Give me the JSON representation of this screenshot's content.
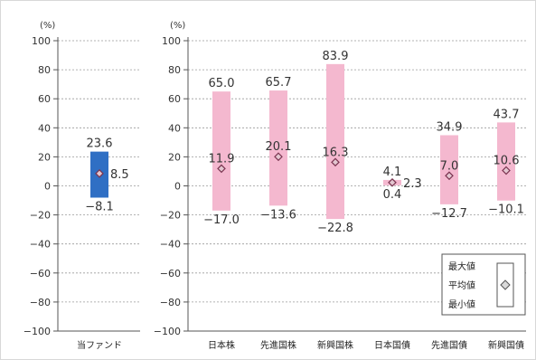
{
  "chart_data": [
    {
      "type": "bar",
      "chart_kind": "range-bar",
      "unit": "(%)",
      "ylim": [
        -100,
        100
      ],
      "yticks": [
        100,
        80,
        60,
        40,
        20,
        0,
        -20,
        -40,
        -60,
        -80,
        -100
      ],
      "ytick_labels": [
        "100",
        "80",
        "60",
        "40",
        "20",
        "0",
        "−20",
        "−40",
        "−60",
        "−80",
        "−100"
      ],
      "grid": true,
      "color": "#2f6fc4",
      "series": [
        {
          "category": "当ファンド",
          "max": 23.6,
          "avg": 8.5,
          "min": -8.1,
          "max_label": "23.6",
          "avg_label": "8.5",
          "min_label": "−8.1"
        }
      ]
    },
    {
      "type": "bar",
      "chart_kind": "range-bar",
      "unit": "(%)",
      "ylim": [
        -100,
        100
      ],
      "yticks": [
        100,
        80,
        60,
        40,
        20,
        0,
        -20,
        -40,
        -60,
        -80,
        -100
      ],
      "ytick_labels": [
        "100",
        "80",
        "60",
        "40",
        "20",
        "0",
        "−20",
        "−40",
        "−60",
        "−80",
        "−100"
      ],
      "grid": true,
      "color": "#f4b8cf",
      "legend": {
        "placement": "bottom-right",
        "max": "最大値",
        "avg": "平均値",
        "min": "最小値"
      },
      "series": [
        {
          "category": "日本株",
          "max": 65.0,
          "avg": 11.9,
          "min": -17.0,
          "max_label": "65.0",
          "avg_label": "11.9",
          "min_label": "−17.0"
        },
        {
          "category": "先進国株",
          "max": 65.7,
          "avg": 20.1,
          "min": -13.6,
          "max_label": "65.7",
          "avg_label": "20.1",
          "min_label": "−13.6"
        },
        {
          "category": "新興国株",
          "max": 83.9,
          "avg": 16.3,
          "min": -22.8,
          "max_label": "83.9",
          "avg_label": "16.3",
          "min_label": "−22.8"
        },
        {
          "category": "日本国債",
          "max": 4.1,
          "avg": 2.3,
          "min": 0.4,
          "max_label": "4.1",
          "avg_label": "2.3",
          "min_label": "0.4"
        },
        {
          "category": "先進国債",
          "max": 34.9,
          "avg": 7.0,
          "min": -12.7,
          "max_label": "34.9",
          "avg_label": "7.0",
          "min_label": "−12.7"
        },
        {
          "category": "新興国債",
          "max": 43.7,
          "avg": 10.6,
          "min": -10.1,
          "max_label": "43.7",
          "avg_label": "10.6",
          "min_label": "−10.1"
        }
      ]
    }
  ]
}
